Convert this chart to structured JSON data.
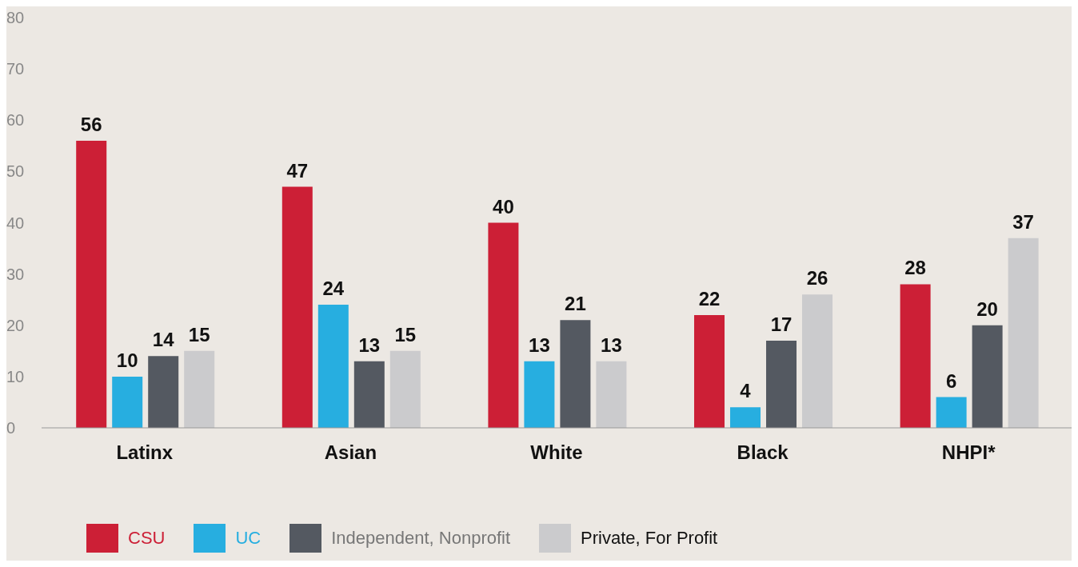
{
  "chart_data": {
    "type": "bar",
    "categories": [
      "Latinx",
      "Asian",
      "White",
      "Black",
      "NHPI*"
    ],
    "series": [
      {
        "name": "CSU",
        "color": "#cc1f36",
        "values": [
          56,
          47,
          40,
          22,
          28
        ]
      },
      {
        "name": "UC",
        "color": "#27aee0",
        "values": [
          10,
          24,
          13,
          4,
          6
        ]
      },
      {
        "name": "Independent, Nonprofit",
        "color": "#545961",
        "values": [
          14,
          13,
          21,
          17,
          20
        ]
      },
      {
        "name": "Private, For Profit",
        "color": "#cbcbcd",
        "values": [
          15,
          15,
          13,
          26,
          37
        ]
      }
    ],
    "ylim": [
      0,
      80
    ],
    "yticks": [
      0,
      10,
      20,
      30,
      40,
      50,
      60,
      70,
      80
    ],
    "legend": "bottom left",
    "data_labels": true
  }
}
